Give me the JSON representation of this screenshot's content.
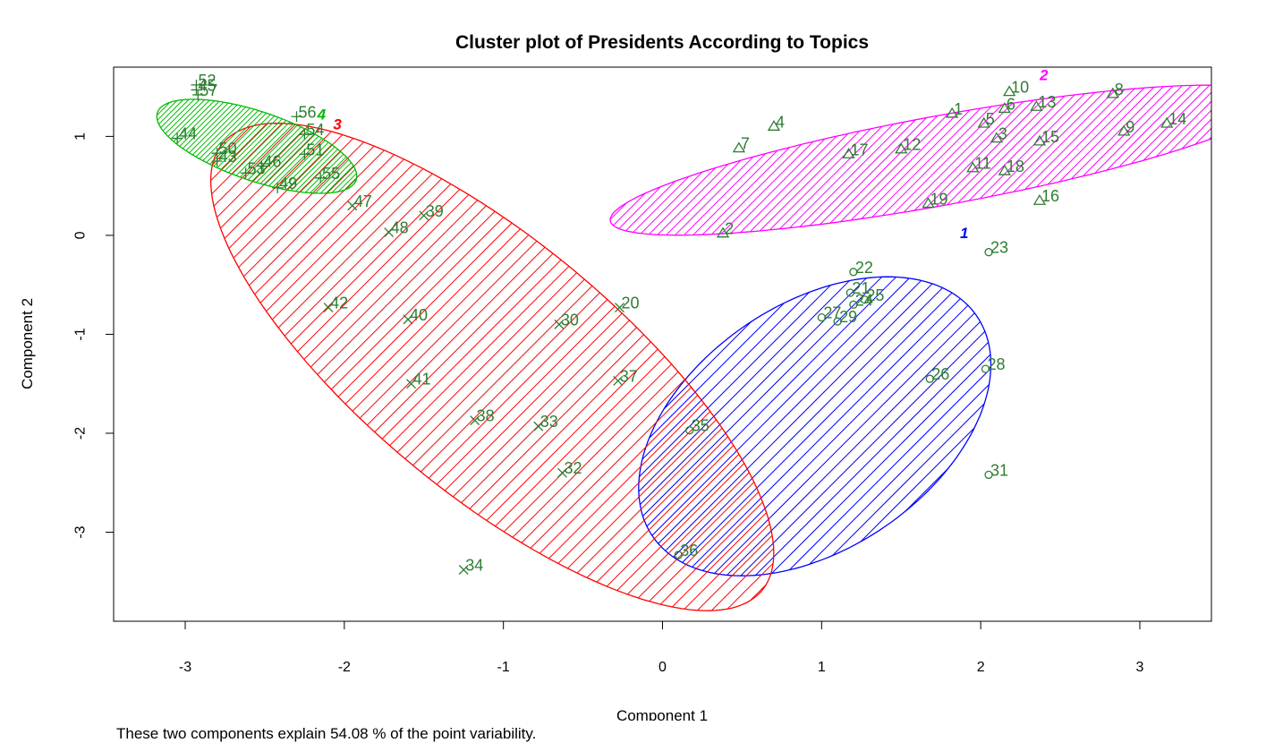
{
  "chart_data": {
    "type": "scatter",
    "title": "Cluster plot of Presidents According to Topics",
    "xlabel": "Component 1",
    "ylabel": "Component 2",
    "xlim": [
      -3.45,
      3.45
    ],
    "ylim": [
      -3.9,
      1.7
    ],
    "xticks": [
      -3,
      -2,
      -1,
      0,
      1,
      2,
      3
    ],
    "yticks": [
      -3,
      -2,
      -1,
      0,
      1
    ],
    "footnote": "These two components explain 54.08 % of the point variability.",
    "clusters": [
      {
        "id": "1",
        "color": "#0000ff",
        "symbol": "circle",
        "ellipse": {
          "cx": 0.957,
          "cy": -1.93,
          "rx": 1.62,
          "ry": 0.94,
          "angle_deg": 63.7
        },
        "label_pos": [
          1.87,
          -0.03
        ]
      },
      {
        "id": "2",
        "color": "#ff00ff",
        "symbol": "triangle",
        "ellipse": {
          "cx": 1.762,
          "cy": 0.76,
          "rx": 2.18,
          "ry": 0.44,
          "angle_deg": 16.8
        },
        "label_pos": [
          2.37,
          1.57
        ]
      },
      {
        "id": "3",
        "color": "#ff0000",
        "symbol": "x",
        "ellipse": {
          "cx": -1.07,
          "cy": -1.33,
          "rx": 2.87,
          "ry": 0.98,
          "angle_deg": -56.9
        },
        "label_pos": [
          -2.07,
          1.07
        ]
      },
      {
        "id": "4",
        "color": "#00bb00",
        "symbol": "plus",
        "ellipse": {
          "cx": -2.55,
          "cy": 0.9,
          "rx": 0.72,
          "ry": 0.32,
          "angle_deg": -33.0
        },
        "label_pos": [
          -2.17,
          1.17
        ]
      }
    ],
    "points": [
      {
        "id": "1",
        "x": 1.82,
        "y": 1.23,
        "cluster": 1
      },
      {
        "id": "2",
        "x": 0.38,
        "y": 0.02,
        "cluster": 1
      },
      {
        "id": "3",
        "x": 2.1,
        "y": 0.98,
        "cluster": 1
      },
      {
        "id": "4",
        "x": 0.7,
        "y": 1.1,
        "cluster": 1
      },
      {
        "id": "5",
        "x": 2.02,
        "y": 1.13,
        "cluster": 1
      },
      {
        "id": "6",
        "x": 2.15,
        "y": 1.28,
        "cluster": 1
      },
      {
        "id": "7",
        "x": 0.48,
        "y": 0.88,
        "cluster": 1
      },
      {
        "id": "8",
        "x": 2.83,
        "y": 1.43,
        "cluster": 1
      },
      {
        "id": "9",
        "x": 2.9,
        "y": 1.05,
        "cluster": 1
      },
      {
        "id": "10",
        "x": 2.18,
        "y": 1.45,
        "cluster": 1
      },
      {
        "id": "11",
        "x": 1.95,
        "y": 0.68,
        "cluster": 1
      },
      {
        "id": "12",
        "x": 1.5,
        "y": 0.87,
        "cluster": 1
      },
      {
        "id": "13",
        "x": 2.35,
        "y": 1.3,
        "cluster": 1
      },
      {
        "id": "14",
        "x": 3.17,
        "y": 1.13,
        "cluster": 1
      },
      {
        "id": "15",
        "x": 2.37,
        "y": 0.95,
        "cluster": 1
      },
      {
        "id": "16",
        "x": 2.37,
        "y": 0.35,
        "cluster": 1
      },
      {
        "id": "17",
        "x": 1.17,
        "y": 0.82,
        "cluster": 1
      },
      {
        "id": "18",
        "x": 2.15,
        "y": 0.65,
        "cluster": 1
      },
      {
        "id": "19",
        "x": 1.67,
        "y": 0.32,
        "cluster": 1
      },
      {
        "id": "20",
        "x": -0.27,
        "y": -0.73,
        "cluster": 2
      },
      {
        "id": "21",
        "x": 1.18,
        "y": -0.58,
        "cluster": 0
      },
      {
        "id": "22",
        "x": 1.2,
        "y": -0.37,
        "cluster": 0
      },
      {
        "id": "23",
        "x": 2.05,
        "y": -0.17,
        "cluster": 0
      },
      {
        "id": "24",
        "x": 1.2,
        "y": -0.7,
        "cluster": 0
      },
      {
        "id": "25",
        "x": 1.27,
        "y": -0.65,
        "cluster": 0
      },
      {
        "id": "26",
        "x": 1.68,
        "y": -1.45,
        "cluster": 0
      },
      {
        "id": "27",
        "x": 1.0,
        "y": -0.83,
        "cluster": 0
      },
      {
        "id": "28",
        "x": 2.03,
        "y": -1.35,
        "cluster": 0
      },
      {
        "id": "29",
        "x": 1.1,
        "y": -0.87,
        "cluster": 0
      },
      {
        "id": "30",
        "x": -0.65,
        "y": -0.9,
        "cluster": 2
      },
      {
        "id": "31",
        "x": 2.05,
        "y": -2.42,
        "cluster": 0
      },
      {
        "id": "32",
        "x": -0.63,
        "y": -2.4,
        "cluster": 2
      },
      {
        "id": "33",
        "x": -0.78,
        "y": -1.93,
        "cluster": 2
      },
      {
        "id": "34",
        "x": -1.25,
        "y": -3.38,
        "cluster": 2
      },
      {
        "id": "35",
        "x": 0.17,
        "y": -1.97,
        "cluster": 0
      },
      {
        "id": "36",
        "x": 0.1,
        "y": -3.23,
        "cluster": 0
      },
      {
        "id": "37",
        "x": -0.28,
        "y": -1.47,
        "cluster": 2
      },
      {
        "id": "38",
        "x": -1.18,
        "y": -1.87,
        "cluster": 2
      },
      {
        "id": "39",
        "x": -1.5,
        "y": 0.2,
        "cluster": 2
      },
      {
        "id": "40",
        "x": -1.6,
        "y": -0.85,
        "cluster": 2
      },
      {
        "id": "41",
        "x": -1.58,
        "y": -1.5,
        "cluster": 2
      },
      {
        "id": "42",
        "x": -2.1,
        "y": -0.73,
        "cluster": 2
      },
      {
        "id": "43",
        "x": -2.8,
        "y": 0.75,
        "cluster": 3
      },
      {
        "id": "44",
        "x": -3.05,
        "y": 0.98,
        "cluster": 3
      },
      {
        "id": "45",
        "x": -2.93,
        "y": 1.47,
        "cluster": 3
      },
      {
        "id": "46",
        "x": -2.52,
        "y": 0.7,
        "cluster": 3
      },
      {
        "id": "47",
        "x": -1.95,
        "y": 0.3,
        "cluster": 2
      },
      {
        "id": "48",
        "x": -1.72,
        "y": 0.03,
        "cluster": 2
      },
      {
        "id": "49",
        "x": -2.42,
        "y": 0.48,
        "cluster": 3
      },
      {
        "id": "50",
        "x": -2.8,
        "y": 0.83,
        "cluster": 3
      },
      {
        "id": "51",
        "x": -2.25,
        "y": 0.82,
        "cluster": 3
      },
      {
        "id": "52",
        "x": -2.93,
        "y": 1.52,
        "cluster": 3
      },
      {
        "id": "53",
        "x": -2.62,
        "y": 0.63,
        "cluster": 3
      },
      {
        "id": "54",
        "x": -2.25,
        "y": 1.02,
        "cluster": 3
      },
      {
        "id": "55",
        "x": -2.15,
        "y": 0.58,
        "cluster": 3
      },
      {
        "id": "56",
        "x": -2.3,
        "y": 1.2,
        "cluster": 3
      },
      {
        "id": "57",
        "x": -2.92,
        "y": 1.42,
        "cluster": 3
      }
    ]
  }
}
